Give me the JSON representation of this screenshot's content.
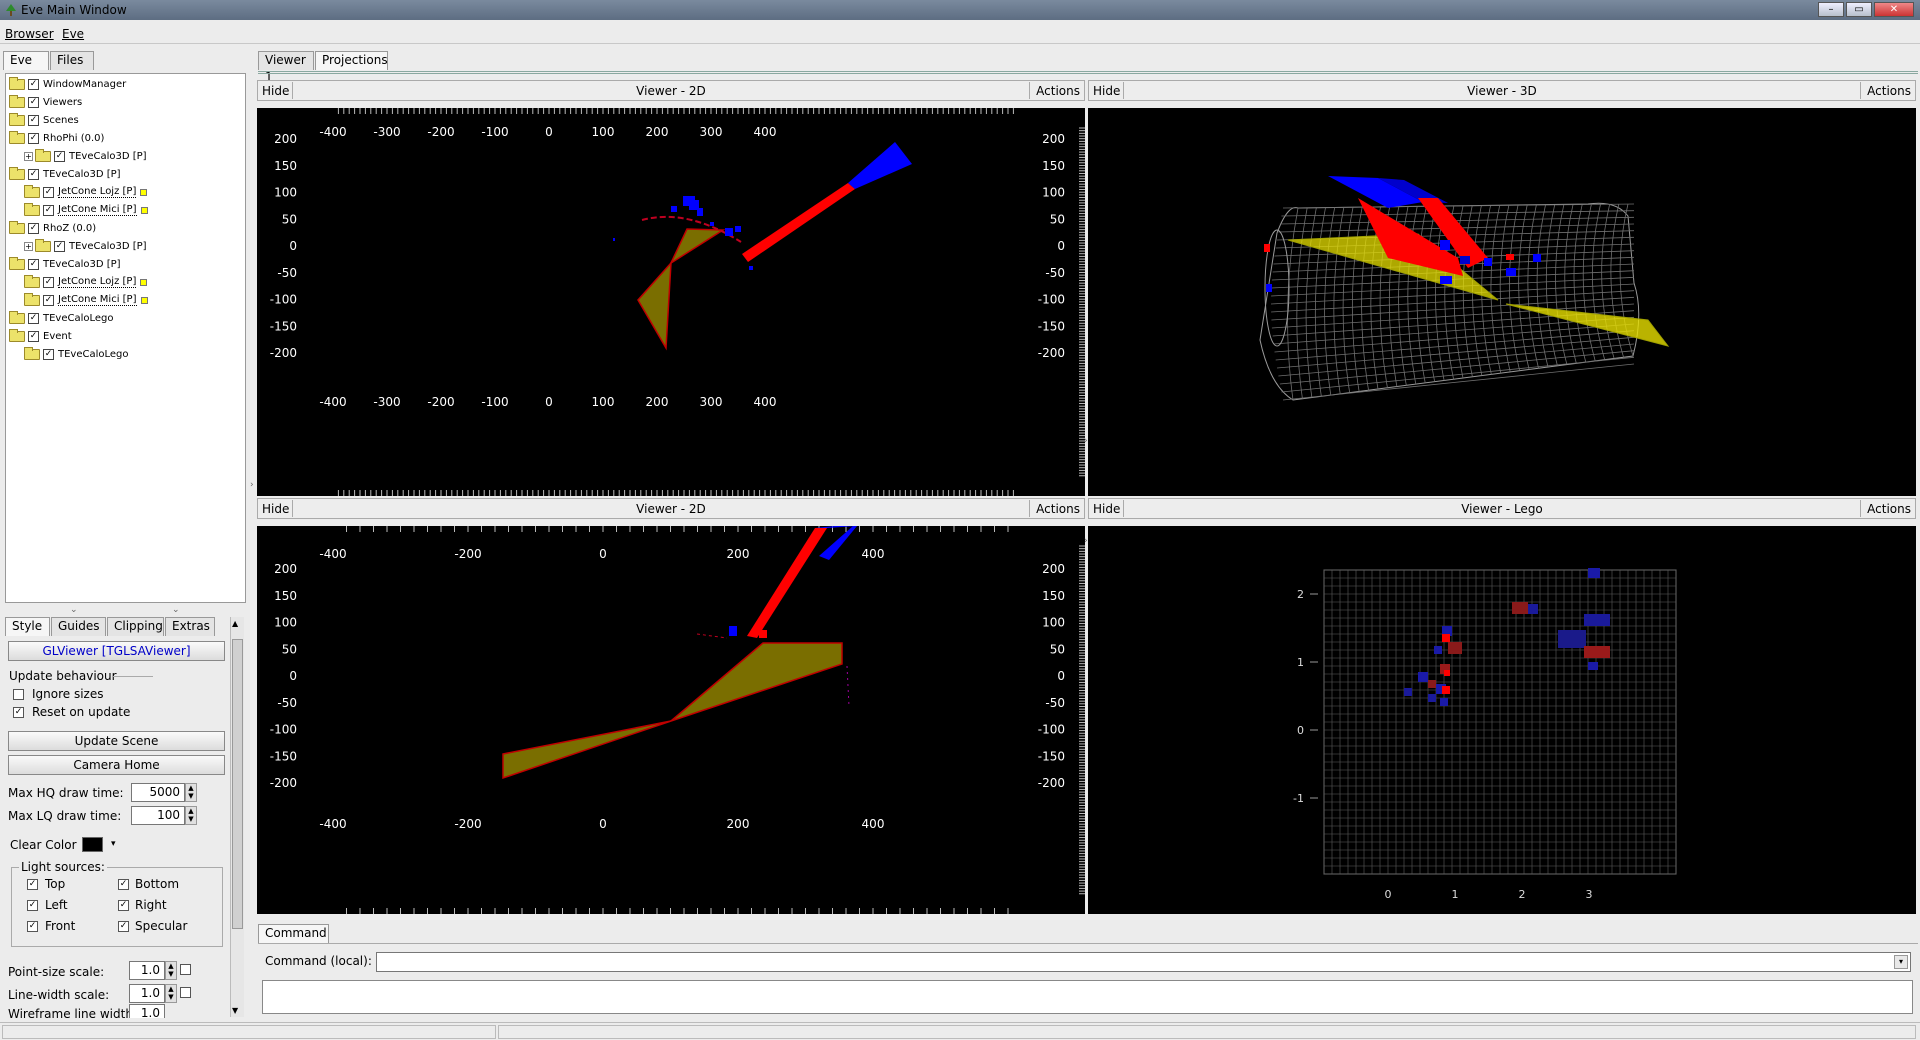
{
  "window": {
    "title": "Eve Main Window"
  },
  "menu": [
    "Browser",
    "Eve"
  ],
  "left_tabs": [
    "Eve",
    "Files"
  ],
  "main_tabs": [
    "Viewer 1",
    "Projections"
  ],
  "tree": [
    {
      "label": "WindowManager",
      "level": 0,
      "expander": false,
      "marker": false
    },
    {
      "label": "Viewers",
      "level": 0,
      "expander": false,
      "marker": false
    },
    {
      "label": "Scenes",
      "level": 0,
      "expander": false,
      "marker": false
    },
    {
      "label": "RhoPhi (0.0)",
      "level": 0,
      "expander": false,
      "marker": false
    },
    {
      "label": "TEveCalo3D [P]",
      "level": 1,
      "expander": true,
      "marker": false
    },
    {
      "label": "TEveCalo3D [P]",
      "level": 0,
      "expander": false,
      "marker": false
    },
    {
      "label": "JetCone Lojz [P]",
      "level": 1,
      "expander": false,
      "marker": true
    },
    {
      "label": "JetCone Mici [P]",
      "level": 1,
      "expander": false,
      "marker": true
    },
    {
      "label": "RhoZ (0.0)",
      "level": 0,
      "expander": false,
      "marker": false
    },
    {
      "label": "TEveCalo3D [P]",
      "level": 1,
      "expander": true,
      "marker": false
    },
    {
      "label": "TEveCalo3D [P]",
      "level": 0,
      "expander": false,
      "marker": false
    },
    {
      "label": "JetCone Lojz [P]",
      "level": 1,
      "expander": false,
      "marker": true
    },
    {
      "label": "JetCone Mici [P]",
      "level": 1,
      "expander": false,
      "marker": true
    },
    {
      "label": "TEveCaloLego",
      "level": 0,
      "expander": false,
      "marker": false
    },
    {
      "label": "Event",
      "level": 0,
      "expander": false,
      "marker": false
    },
    {
      "label": "TEveCaloLego",
      "level": 1,
      "expander": false,
      "marker": false
    }
  ],
  "editor": {
    "tabs": [
      "Style",
      "Guides",
      "Clipping",
      "Extras"
    ],
    "object_button": "GLViewer [TGLSAViewer]",
    "update_behaviour": "Update behaviour",
    "ignore_sizes": "Ignore sizes",
    "reset_on_update": "Reset on update",
    "update_scene": "Update Scene",
    "camera_home": "Camera Home",
    "max_hq_label": "Max HQ draw time:",
    "max_hq_value": "5000",
    "max_lq_label": "Max LQ draw time:",
    "max_lq_value": "100",
    "clear_color": "Clear Color",
    "light_sources": "Light sources:",
    "lights": [
      "Top",
      "Bottom",
      "Left",
      "Right",
      "Front",
      "Specular"
    ],
    "point_size_label": "Point-size scale:",
    "point_size_value": "1.0",
    "line_width_label": "Line-width scale:",
    "line_width_value": "1.0",
    "wireframe_label": "Wireframe line width:",
    "wireframe_value": "1.0"
  },
  "viewers": [
    {
      "title": "Viewer - 2D",
      "hide": "Hide",
      "actions": "Actions"
    },
    {
      "title": "Viewer - 3D",
      "hide": "Hide",
      "actions": "Actions"
    },
    {
      "title": "Viewer - 2D",
      "hide": "Hide",
      "actions": "Actions"
    },
    {
      "title": "Viewer - Lego",
      "hide": "Hide",
      "actions": "Actions"
    }
  ],
  "axes": {
    "v1_x": [
      "-400",
      "-300",
      "-200",
      "-100",
      "0",
      "100",
      "200",
      "300",
      "400"
    ],
    "v1_y": [
      "200",
      "150",
      "100",
      "50",
      "0",
      "-50",
      "-100",
      "-150",
      "-200"
    ],
    "v3_x": [
      "-400",
      "-200",
      "0",
      "200",
      "400"
    ],
    "v3_y": [
      "200",
      "150",
      "100",
      "50",
      "0",
      "-50",
      "-100",
      "-150",
      "-200"
    ],
    "lego_x": [
      "0",
      "1",
      "2",
      "3"
    ],
    "lego_y": [
      "2",
      "1",
      "0",
      "-1"
    ]
  },
  "command": {
    "tab": "Command",
    "label": "Command (local):"
  },
  "colors": {
    "calo_red": "#ff0000",
    "calo_blue": "#0000ff",
    "cone": "#7a6e00",
    "cone_edge": "#c00000",
    "mesh": "#9a9a9a"
  }
}
